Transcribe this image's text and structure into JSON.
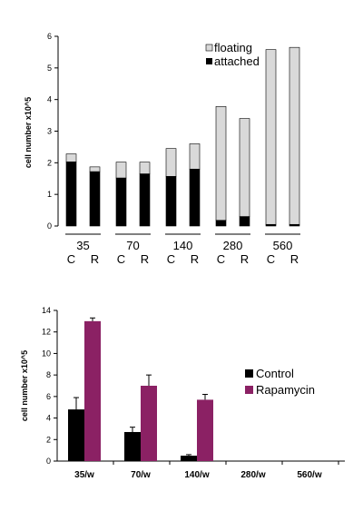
{
  "chart_data": [
    {
      "type": "bar",
      "stacked": true,
      "ylabel": "cell number x10^5",
      "ylim": [
        0,
        6
      ],
      "yticks": [
        "0",
        "1",
        "2",
        "3",
        "4",
        "5",
        "6"
      ],
      "groups": [
        "35",
        "70",
        "140",
        "280",
        "560"
      ],
      "categories": [
        "C",
        "R",
        "C",
        "R",
        "C",
        "R",
        "C",
        "R",
        "C",
        "R"
      ],
      "series": [
        {
          "name": "attached",
          "color": "#000000",
          "values": [
            2.03,
            1.72,
            1.52,
            1.65,
            1.57,
            1.8,
            0.18,
            0.3,
            0.05,
            0.05
          ]
        },
        {
          "name": "floating",
          "color": "#d9d9d9",
          "values": [
            0.25,
            0.15,
            0.5,
            0.37,
            0.88,
            0.8,
            3.6,
            3.1,
            5.53,
            5.6
          ]
        }
      ],
      "legend_position": "top-right"
    },
    {
      "type": "bar",
      "ylabel": "cell number x10^5",
      "ylim": [
        0,
        14
      ],
      "yticks": [
        "0",
        "2",
        "4",
        "6",
        "8",
        "10",
        "12",
        "14"
      ],
      "categories": [
        "35/w",
        "70/w",
        "140/w",
        "280/w",
        "560/w"
      ],
      "series": [
        {
          "name": "Control",
          "color": "#000000",
          "values": [
            4.8,
            2.7,
            0.5,
            0,
            0
          ],
          "errors": [
            1.1,
            0.45,
            0.1,
            0,
            0
          ]
        },
        {
          "name": "Rapamycin",
          "color": "#8b2164",
          "values": [
            13.0,
            7.0,
            5.7,
            0,
            0
          ],
          "errors": [
            0.3,
            1.0,
            0.5,
            0,
            0
          ]
        }
      ],
      "legend_position": "right"
    }
  ]
}
